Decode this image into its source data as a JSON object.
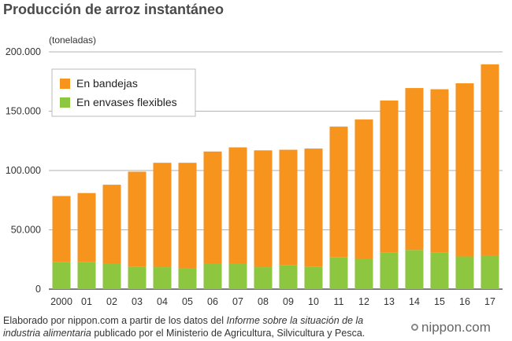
{
  "title": "Producción de arroz instantáneo",
  "unit_label": "(toneladas)",
  "source": {
    "part1": "Elaborado por nippon.com a partir de los datos del ",
    "italic": "Informe sobre la situación de la industria alimentaria",
    "part2": " publicado por el Ministerio de Agricultura, Silvicultura y Pesca."
  },
  "logo": "nippon.com",
  "chart_data": {
    "type": "bar",
    "stacked": true,
    "categories": [
      "2000",
      "01",
      "02",
      "03",
      "04",
      "05",
      "06",
      "07",
      "08",
      "09",
      "10",
      "11",
      "12",
      "13",
      "14",
      "15",
      "16",
      "17"
    ],
    "series": [
      {
        "name": "En envases flexibles",
        "color": "#8dc63f",
        "values": [
          23000,
          23000,
          21500,
          19000,
          18500,
          17500,
          21500,
          21500,
          18500,
          20000,
          19000,
          27000,
          25500,
          31000,
          33000,
          31000,
          27500,
          28500
        ]
      },
      {
        "name": "En bandejas",
        "color": "#f7941d",
        "values": [
          55500,
          58000,
          66500,
          80000,
          88000,
          89000,
          94500,
          98000,
          98500,
          97500,
          99500,
          110000,
          117500,
          128000,
          136500,
          137500,
          146000,
          161000
        ]
      }
    ],
    "legend_order": [
      "En bandejas",
      "En envases flexibles"
    ],
    "legend_position": "top-left",
    "ylim": [
      0,
      200000
    ],
    "yticks": [
      0,
      50000,
      100000,
      150000,
      200000
    ],
    "ytick_labels": [
      "0",
      "50.000",
      "100.000",
      "150.000",
      "200.000"
    ],
    "grid": true
  }
}
